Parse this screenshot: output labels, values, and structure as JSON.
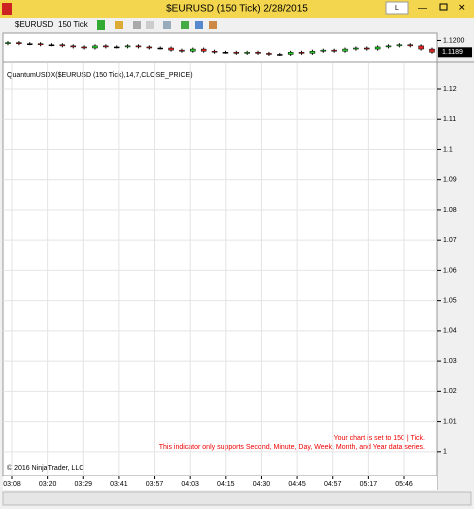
{
  "window": {
    "title": "$EURUSD (150 Tick)  2/28/2015",
    "button": "L"
  },
  "toolbar": {
    "instrument": "$EURUSD",
    "period": "150 Tick"
  },
  "price_panel": {
    "ylim": [
      1.118,
      1.1206
    ],
    "yticks": [
      {
        "value": 1.12,
        "label": "1.1200"
      }
    ],
    "last_price": 1.1189,
    "open": [
      1.1197,
      1.1198,
      1.1197,
      1.1197,
      1.1196,
      1.1196,
      1.1195,
      1.1194,
      1.1193,
      1.1195,
      1.1194,
      1.1194,
      1.1195,
      1.1194,
      1.1193,
      1.1193,
      1.1191,
      1.119,
      1.1192,
      1.119,
      1.1189,
      1.1189,
      1.1188,
      1.1189,
      1.1188,
      1.1187,
      1.1187,
      1.1189,
      1.1188,
      1.119,
      1.1191,
      1.119,
      1.1192,
      1.1193,
      1.1192,
      1.1194,
      1.1195,
      1.1196,
      1.1195,
      1.1192
    ],
    "close": [
      1.1198,
      1.1197,
      1.1197,
      1.1196,
      1.1196,
      1.1195,
      1.1194,
      1.1193,
      1.1195,
      1.1194,
      1.1194,
      1.1195,
      1.1194,
      1.1193,
      1.1193,
      1.1191,
      1.119,
      1.1192,
      1.119,
      1.1189,
      1.1189,
      1.1188,
      1.1189,
      1.1188,
      1.1187,
      1.1187,
      1.1189,
      1.1188,
      1.119,
      1.1191,
      1.119,
      1.1192,
      1.1193,
      1.1192,
      1.1194,
      1.1195,
      1.1196,
      1.1195,
      1.1192,
      1.1189
    ]
  },
  "indicator_panel": {
    "label": "QuantumUSDX($EURUSD (150 Tick),14,7,CLOSE_PRICE)",
    "ylim": [
      0.992,
      1.1286
    ],
    "yticks": [
      1.12,
      1.11,
      1.1,
      1.09,
      1.08,
      1.07,
      1.06,
      1.05,
      1.04,
      1.03,
      1.02,
      1.01,
      1
    ],
    "messages": [
      "Your chart is set to 150 | Tick.",
      "This indicator only supports Second, Minute, Day, Week, Month, and Year data series."
    ],
    "copyright": "© 2016 NinjaTrader, LLC"
  },
  "time_axis": {
    "labels": [
      "03:08",
      "03:20",
      "03:29",
      "03:41",
      "03:57",
      "04:03",
      "04:15",
      "04:30",
      "04:45",
      "04:57",
      "05:17",
      "05:46"
    ]
  }
}
